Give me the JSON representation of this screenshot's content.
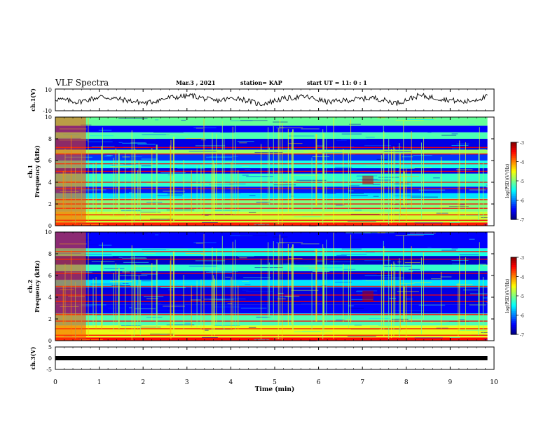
{
  "header": {
    "title": "VLF Spectra",
    "date": "Mar.3 , 2021",
    "station": "station= KAP",
    "start_ut": "start UT = 11: 0 : 1"
  },
  "chart_data": [
    {
      "type": "line",
      "panel": "ch1-waveform",
      "ylabel": "ch.1(V)",
      "ylim": [
        -10,
        10
      ],
      "yticks": [
        "10",
        "-10"
      ],
      "xlim": [
        0,
        10
      ],
      "series": [
        {
          "values": [
            1,
            -2,
            3,
            0,
            -3,
            2,
            4,
            -1,
            2,
            -4,
            1,
            3,
            -2,
            0,
            2,
            -3,
            4,
            1,
            -2,
            3
          ]
        }
      ]
    },
    {
      "type": "heatmap",
      "panel": "ch1-spectrogram",
      "ylabel": "ch.1 Frequency (kHz)",
      "ylim": [
        0,
        10
      ],
      "yticks": [
        "0",
        "2",
        "4",
        "6",
        "8",
        "10"
      ],
      "xlim": [
        0,
        9.85
      ],
      "zlim": [
        -7,
        -3
      ],
      "colorbar_label": "log(PSD)(V²/Hz)",
      "colorbar_ticks": [
        "-3",
        "-4",
        "-5",
        "-6",
        "-7"
      ],
      "bands": [
        {
          "kHz": [
            0,
            0.3
          ],
          "value": -3.6
        },
        {
          "kHz": [
            0.3,
            1.3
          ],
          "value": -4.7
        },
        {
          "kHz": [
            1.3,
            2.5
          ],
          "value": -5.0
        },
        {
          "kHz": [
            2.5,
            3.0
          ],
          "value": -5.6
        },
        {
          "kHz": [
            3.0,
            3.6
          ],
          "value": -6.4
        },
        {
          "kHz": [
            3.6,
            4.8
          ],
          "value": -5.3
        },
        {
          "kHz": [
            4.8,
            5.3
          ],
          "value": -6.6
        },
        {
          "kHz": [
            5.3,
            6.0
          ],
          "value": -5.4
        },
        {
          "kHz": [
            6.0,
            6.6
          ],
          "value": -6.3
        },
        {
          "kHz": [
            6.6,
            7.0
          ],
          "value": -4.9
        },
        {
          "kHz": [
            7.0,
            8.0
          ],
          "value": -6.6
        },
        {
          "kHz": [
            8.0,
            8.6
          ],
          "value": -5.2
        },
        {
          "kHz": [
            8.6,
            9.2
          ],
          "value": -6.5
        },
        {
          "kHz": [
            9.2,
            10
          ],
          "value": -5.1
        }
      ],
      "lines_kHz": [
        0.5,
        1.0,
        1.6,
        2.0,
        2.4,
        3.4,
        4.0,
        5.0,
        5.7,
        6.6,
        7.2
      ],
      "bursts": [
        {
          "time_min": [
            0,
            0.7
          ],
          "kHz": [
            0,
            10
          ],
          "value": -3.8
        },
        {
          "time_min": [
            7.0,
            7.25
          ],
          "kHz": [
            3.8,
            4.6
          ],
          "value": -3.2
        }
      ]
    },
    {
      "type": "heatmap",
      "panel": "ch2-spectrogram",
      "ylabel": "ch.2 Frequency (kHz)",
      "ylim": [
        0,
        10
      ],
      "yticks": [
        "0",
        "2",
        "4",
        "6",
        "8",
        "10"
      ],
      "xlim": [
        0,
        9.85
      ],
      "zlim": [
        -7,
        -3
      ],
      "colorbar_label": "log(PSD)(V²/Hz)",
      "colorbar_ticks": [
        "-3",
        "-4",
        "-5",
        "-6",
        "-7"
      ],
      "bands": [
        {
          "kHz": [
            0,
            0.3
          ],
          "value": -3.5
        },
        {
          "kHz": [
            0.3,
            1.4
          ],
          "value": -4.6
        },
        {
          "kHz": [
            1.4,
            2.5
          ],
          "value": -5.2
        },
        {
          "kHz": [
            2.5,
            3.3
          ],
          "value": -6.5
        },
        {
          "kHz": [
            3.3,
            4.9
          ],
          "value": -6.6
        },
        {
          "kHz": [
            4.9,
            5.6
          ],
          "value": -5.6
        },
        {
          "kHz": [
            5.6,
            6.4
          ],
          "value": -6.6
        },
        {
          "kHz": [
            6.4,
            7.0
          ],
          "value": -5.3
        },
        {
          "kHz": [
            7.0,
            7.8
          ],
          "value": -6.7
        },
        {
          "kHz": [
            7.8,
            8.5
          ],
          "value": -5.4
        },
        {
          "kHz": [
            8.5,
            10
          ],
          "value": -6.5
        }
      ],
      "lines_kHz": [
        0.5,
        1.1,
        1.8,
        2.4,
        3.6,
        4.2,
        5.0,
        6.2,
        7.5,
        8.2
      ],
      "bursts": [
        {
          "time_min": [
            0,
            0.7
          ],
          "kHz": [
            0,
            10
          ],
          "value": -3.8
        },
        {
          "time_min": [
            7.0,
            7.25
          ],
          "kHz": [
            3.6,
            4.6
          ],
          "value": -3.2
        }
      ]
    },
    {
      "type": "line",
      "panel": "ch3",
      "ylabel": "ch.3(V)",
      "ylim": [
        -5,
        5
      ],
      "yticks": [
        "5",
        "0",
        "-5"
      ],
      "xlim": [
        0,
        10
      ],
      "series": [
        {
          "values": [
            0,
            0
          ]
        }
      ]
    }
  ],
  "xaxis": {
    "label": "Time (min)",
    "ticks": [
      "0",
      "1",
      "2",
      "3",
      "4",
      "5",
      "6",
      "7",
      "8",
      "9",
      "10"
    ]
  },
  "colors": {
    "scale": [
      "#00007f",
      "#0000ff",
      "#0080ff",
      "#00ffff",
      "#80ff80",
      "#ffff00",
      "#ff8000",
      "#ff0000",
      "#7f0000"
    ]
  }
}
